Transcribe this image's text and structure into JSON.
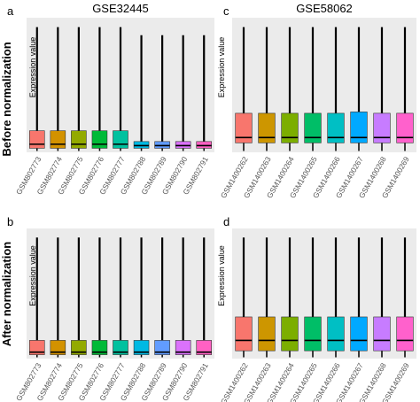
{
  "row_labels": [
    "Before normalization",
    "After normalization"
  ],
  "chart_data": [
    {
      "type": "box",
      "panel": "a",
      "title": "GSE32445",
      "ylabel": "Expression value",
      "ylim": [
        0,
        100
      ],
      "categories": [
        "GSM802773",
        "GSM802774",
        "GSM802775",
        "GSM802776",
        "GSM802777",
        "GSM802788",
        "GSM802789",
        "GSM802790",
        "GSM802791"
      ],
      "colors": [
        "#F8766D",
        "#D39200",
        "#93AA00",
        "#00BA38",
        "#00C19F",
        "#00B9E3",
        "#619CFF",
        "#DB72FB",
        "#FF61C3"
      ],
      "boxes": [
        {
          "min": 1,
          "q1": 3,
          "median": 6,
          "q3": 16,
          "max": 93
        },
        {
          "min": 1,
          "q1": 3,
          "median": 6,
          "q3": 16,
          "max": 93
        },
        {
          "min": 1,
          "q1": 3,
          "median": 6,
          "q3": 16,
          "max": 93
        },
        {
          "min": 1,
          "q1": 3,
          "median": 6,
          "q3": 16,
          "max": 93
        },
        {
          "min": 1,
          "q1": 3,
          "median": 6,
          "q3": 16,
          "max": 93
        },
        {
          "min": 1,
          "q1": 3,
          "median": 5,
          "q3": 8,
          "max": 87
        },
        {
          "min": 1,
          "q1": 3,
          "median": 5,
          "q3": 8,
          "max": 87
        },
        {
          "min": 1,
          "q1": 3,
          "median": 5,
          "q3": 8,
          "max": 87
        },
        {
          "min": 1,
          "q1": 3,
          "median": 5,
          "q3": 8,
          "max": 87
        }
      ]
    },
    {
      "type": "box",
      "panel": "b",
      "ylabel": "Expression value",
      "ylim": [
        0,
        100
      ],
      "categories": [
        "GSM802773",
        "GSM802774",
        "GSM802775",
        "GSM802776",
        "GSM802777",
        "GSM802788",
        "GSM802789",
        "GSM802790",
        "GSM802791"
      ],
      "colors": [
        "#F8766D",
        "#D39200",
        "#93AA00",
        "#00BA38",
        "#00C19F",
        "#00B9E3",
        "#619CFF",
        "#DB72FB",
        "#FF61C3"
      ],
      "boxes": [
        {
          "min": 1,
          "q1": 3,
          "median": 5,
          "q3": 14,
          "max": 93
        },
        {
          "min": 1,
          "q1": 3,
          "median": 5,
          "q3": 14,
          "max": 93
        },
        {
          "min": 1,
          "q1": 3,
          "median": 5,
          "q3": 14,
          "max": 93
        },
        {
          "min": 1,
          "q1": 3,
          "median": 5,
          "q3": 14,
          "max": 93
        },
        {
          "min": 1,
          "q1": 3,
          "median": 5,
          "q3": 14,
          "max": 93
        },
        {
          "min": 1,
          "q1": 3,
          "median": 5,
          "q3": 14,
          "max": 93
        },
        {
          "min": 1,
          "q1": 3,
          "median": 5,
          "q3": 14,
          "max": 93
        },
        {
          "min": 1,
          "q1": 3,
          "median": 5,
          "q3": 14,
          "max": 93
        },
        {
          "min": 1,
          "q1": 3,
          "median": 5,
          "q3": 14,
          "max": 93
        }
      ]
    },
    {
      "type": "box",
      "panel": "c",
      "title": "GSE58062",
      "ylabel": "Expression value",
      "ylim": [
        0,
        100
      ],
      "categories": [
        "GSM1400262",
        "GSM1400263",
        "GSM1400264",
        "GSM1400265",
        "GSM1400266",
        "GSM1400267",
        "GSM1400268",
        "GSM1400269"
      ],
      "colors": [
        "#F8766D",
        "#CD9600",
        "#7CAE00",
        "#00BE67",
        "#00BFC4",
        "#00A9FF",
        "#C77CFF",
        "#FF61CC"
      ],
      "boxes": [
        {
          "min": 1,
          "q1": 7,
          "median": 11,
          "q3": 29,
          "max": 93
        },
        {
          "min": 1,
          "q1": 7,
          "median": 11,
          "q3": 29,
          "max": 93
        },
        {
          "min": 1,
          "q1": 7,
          "median": 11,
          "q3": 29,
          "max": 93
        },
        {
          "min": 1,
          "q1": 7,
          "median": 11,
          "q3": 29,
          "max": 93
        },
        {
          "min": 1,
          "q1": 7,
          "median": 11,
          "q3": 29,
          "max": 93
        },
        {
          "min": 1,
          "q1": 7,
          "median": 11,
          "q3": 30,
          "max": 93
        },
        {
          "min": 1,
          "q1": 7,
          "median": 11,
          "q3": 29,
          "max": 93
        },
        {
          "min": 1,
          "q1": 7,
          "median": 11,
          "q3": 29,
          "max": 93
        }
      ]
    },
    {
      "type": "box",
      "panel": "d",
      "ylabel": "Expression value",
      "ylim": [
        0,
        100
      ],
      "categories": [
        "GSM1400262",
        "GSM1400263",
        "GSM1400264",
        "GSM1400265",
        "GSM1400266",
        "GSM1400267",
        "GSM1400268",
        "GSM1400269"
      ],
      "colors": [
        "#F8766D",
        "#CD9600",
        "#7CAE00",
        "#00BE67",
        "#00BFC4",
        "#00A9FF",
        "#C77CFF",
        "#FF61CC"
      ],
      "boxes": [
        {
          "min": 1,
          "q1": 6,
          "median": 14,
          "q3": 32,
          "max": 93
        },
        {
          "min": 1,
          "q1": 6,
          "median": 14,
          "q3": 32,
          "max": 93
        },
        {
          "min": 1,
          "q1": 6,
          "median": 14,
          "q3": 32,
          "max": 93
        },
        {
          "min": 1,
          "q1": 6,
          "median": 14,
          "q3": 32,
          "max": 93
        },
        {
          "min": 1,
          "q1": 6,
          "median": 14,
          "q3": 32,
          "max": 93
        },
        {
          "min": 1,
          "q1": 6,
          "median": 14,
          "q3": 32,
          "max": 93
        },
        {
          "min": 1,
          "q1": 6,
          "median": 14,
          "q3": 32,
          "max": 93
        },
        {
          "min": 1,
          "q1": 6,
          "median": 14,
          "q3": 32,
          "max": 93
        }
      ]
    }
  ]
}
